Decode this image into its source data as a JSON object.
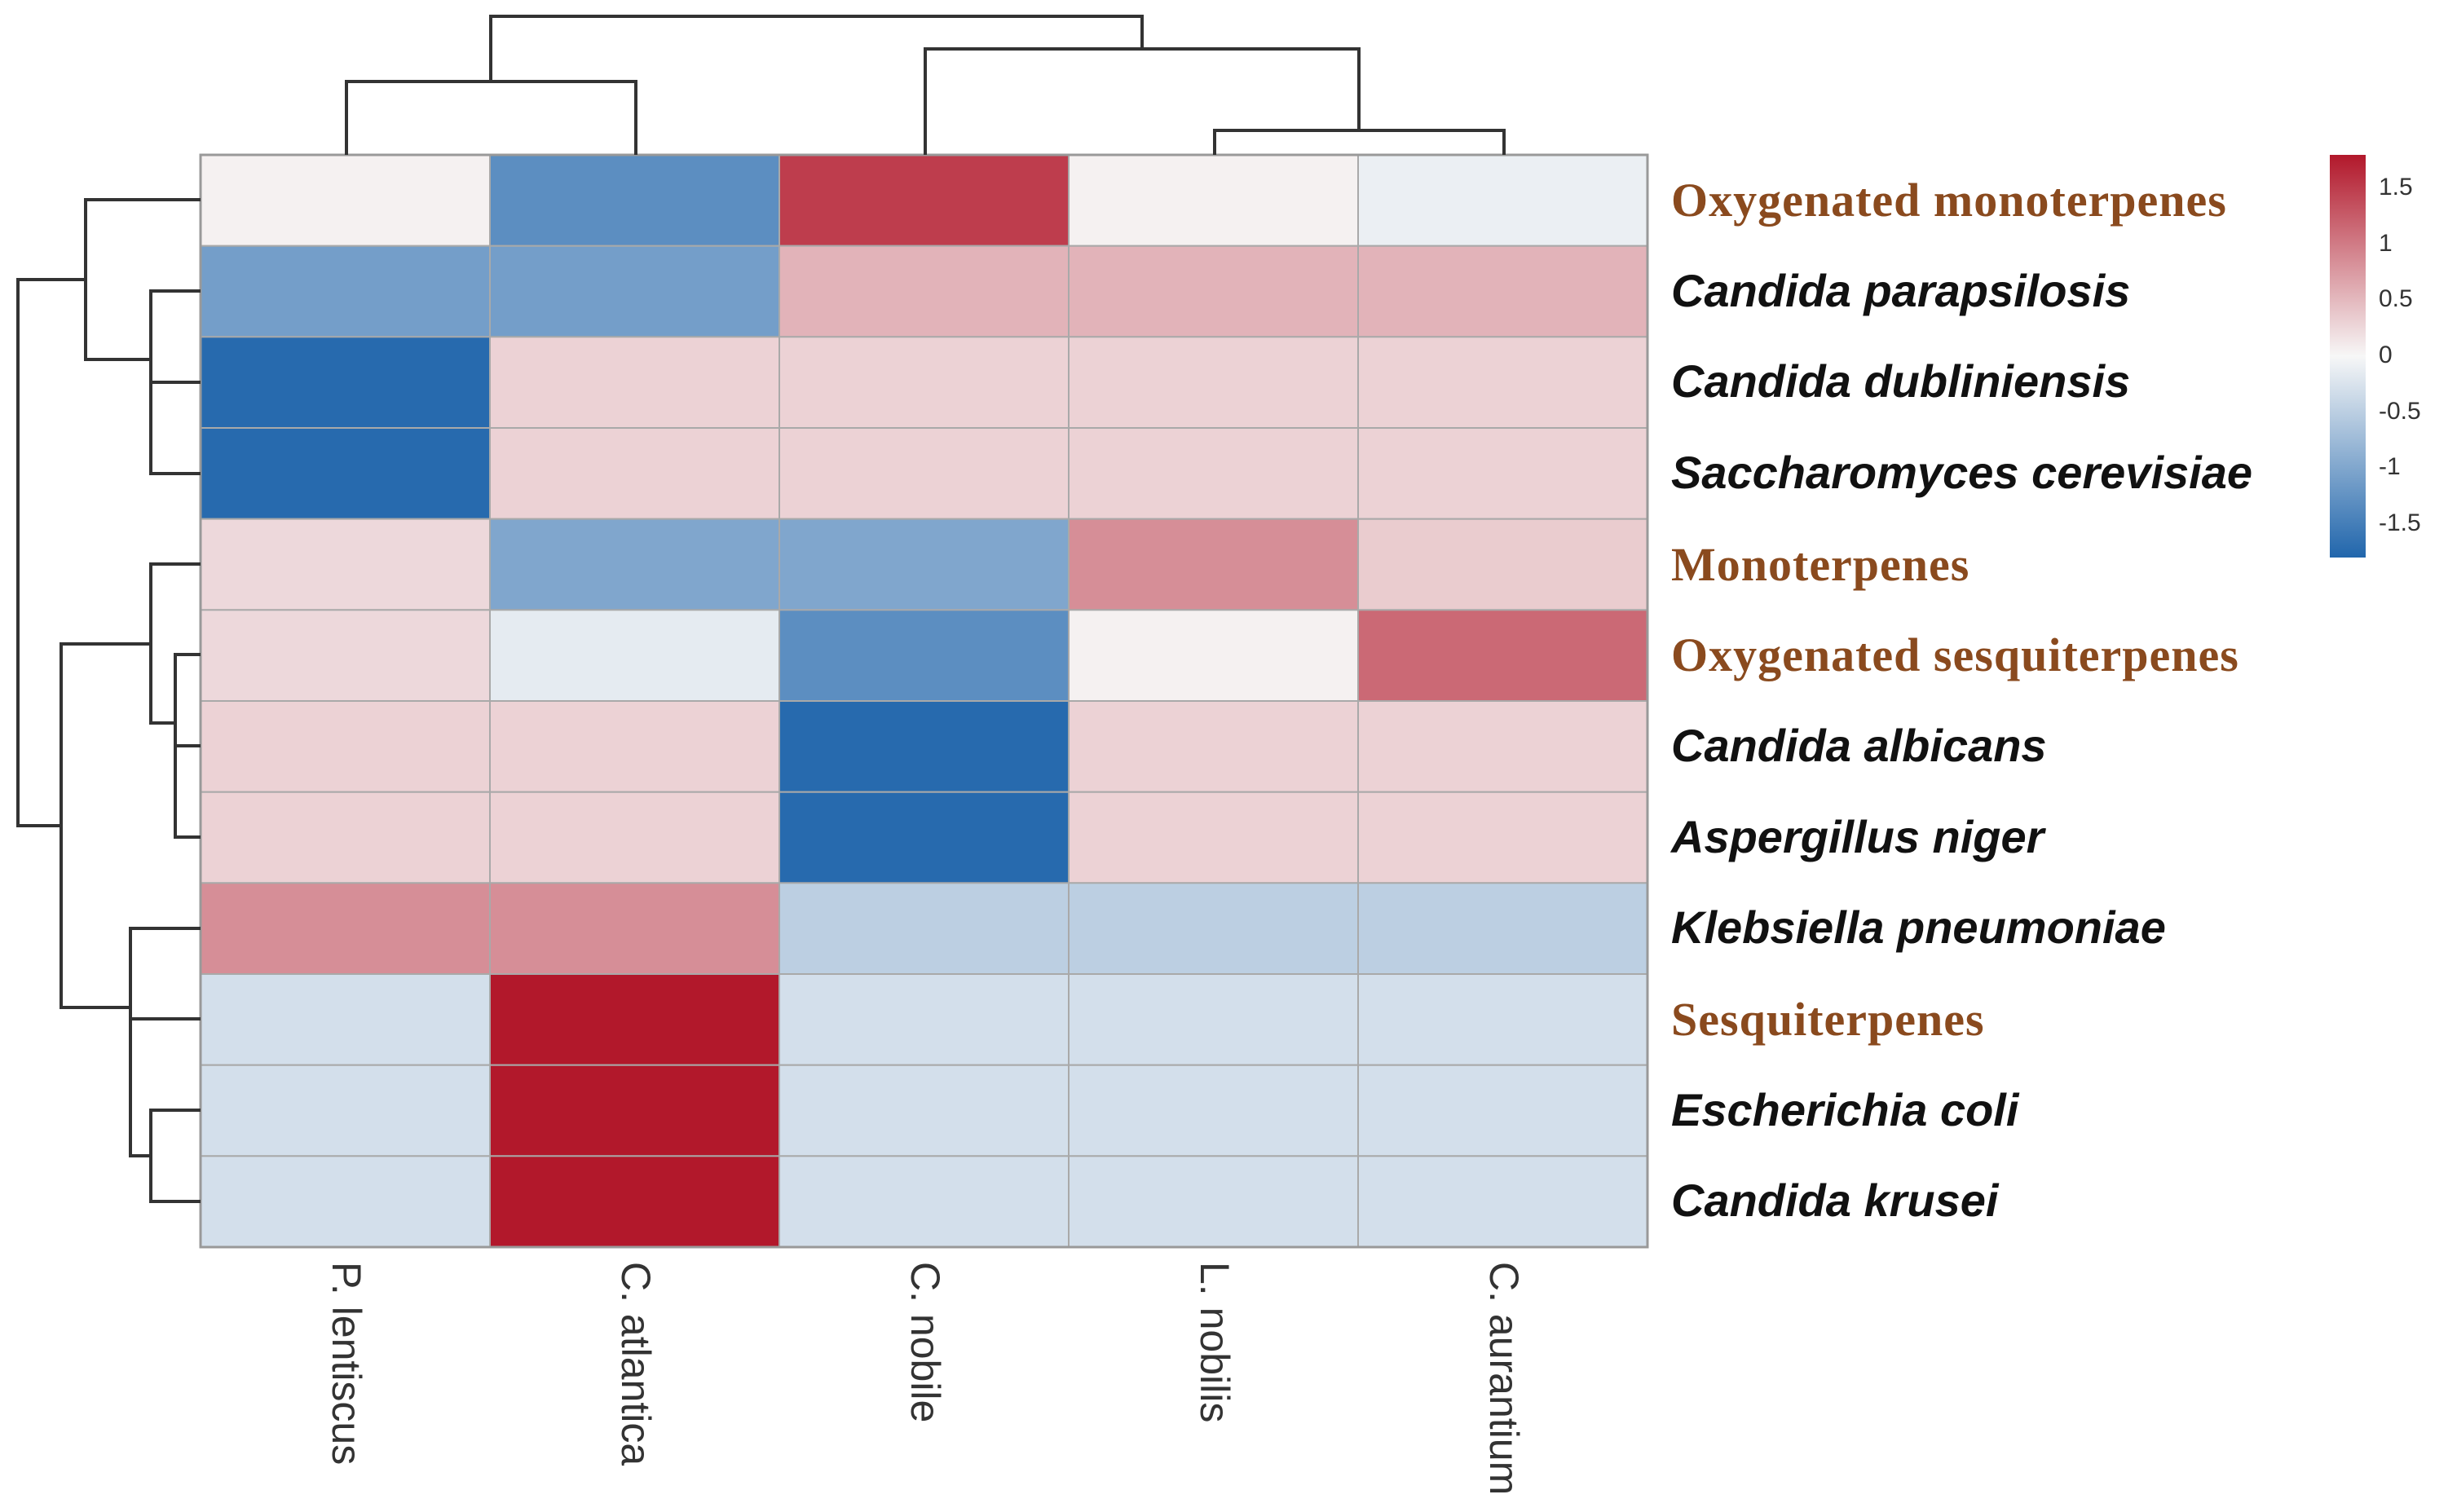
{
  "chart_data": {
    "type": "heatmap",
    "title": "",
    "columns": [
      "P. lentiscus",
      "C. atlantica",
      "C. nobile",
      "L. nobilis",
      "C. aurantium"
    ],
    "rows": [
      {
        "label": "Oxygenated monoterpenes",
        "kind": "compound",
        "values": [
          0.05,
          -1.3,
          1.5,
          0.05,
          -0.1
        ]
      },
      {
        "label": "Candida parapsilosis",
        "kind": "organism",
        "values": [
          -1.1,
          -1.1,
          0.55,
          0.55,
          0.55
        ]
      },
      {
        "label": "Candida dubliniensis",
        "kind": "organism",
        "values": [
          -1.75,
          0.3,
          0.3,
          0.3,
          0.3
        ]
      },
      {
        "label": "Saccharomyces cerevisiae",
        "kind": "organism",
        "values": [
          -1.75,
          0.3,
          0.3,
          0.3,
          0.3
        ]
      },
      {
        "label": "Monoterpenes",
        "kind": "compound",
        "values": [
          0.25,
          -1.0,
          -1.0,
          0.85,
          0.35
        ]
      },
      {
        "label": "Oxygenated sesquiterpenes",
        "kind": "compound",
        "values": [
          0.25,
          -0.15,
          -1.3,
          0.05,
          1.15
        ]
      },
      {
        "label": "Candida albicans",
        "kind": "organism",
        "values": [
          0.3,
          0.3,
          -1.75,
          0.3,
          0.3
        ]
      },
      {
        "label": "Aspergillus niger",
        "kind": "organism",
        "values": [
          0.3,
          0.3,
          -1.75,
          0.3,
          0.3
        ]
      },
      {
        "label": "Klebsiella pneumoniae",
        "kind": "organism",
        "values": [
          0.85,
          0.85,
          -0.5,
          -0.5,
          -0.5
        ]
      },
      {
        "label": "Sesquiterpenes",
        "kind": "compound",
        "values": [
          -0.3,
          1.8,
          -0.3,
          -0.3,
          -0.3
        ]
      },
      {
        "label": "Escherichia coli",
        "kind": "organism",
        "values": [
          -0.3,
          1.8,
          -0.3,
          -0.3,
          -0.3
        ]
      },
      {
        "label": "Candida krusei",
        "kind": "organism",
        "values": [
          -0.3,
          1.8,
          -0.3,
          -0.3,
          -0.3
        ]
      }
    ],
    "colorbar": {
      "ticks": [
        "1.5",
        "1",
        "0.5",
        "0",
        "-0.5",
        "-1",
        "-1.5"
      ],
      "range": [
        -1.8,
        1.8
      ],
      "colors": {
        "low": "#2166ac",
        "mid": "#f7f7f7",
        "high": "#b2182b"
      }
    },
    "column_dendrogram": "((P. lentiscus, C. atlantica), (C. nobile, (L. nobilis, C. aurantium)))",
    "row_dendrogram": "(((Oxygenated monoterpenes, (Candida parapsilosis, (Candida dubliniensis, Saccharomyces cerevisiae))), ((Monoterpenes, (Oxygenated sesquiterpenes, (Candida albicans, Aspergillus niger))), (Klebsiella pneumoniae, (Sesquiterpenes, (Escherichia coli, Candida krusei))))))",
    "legend_position": "right"
  }
}
